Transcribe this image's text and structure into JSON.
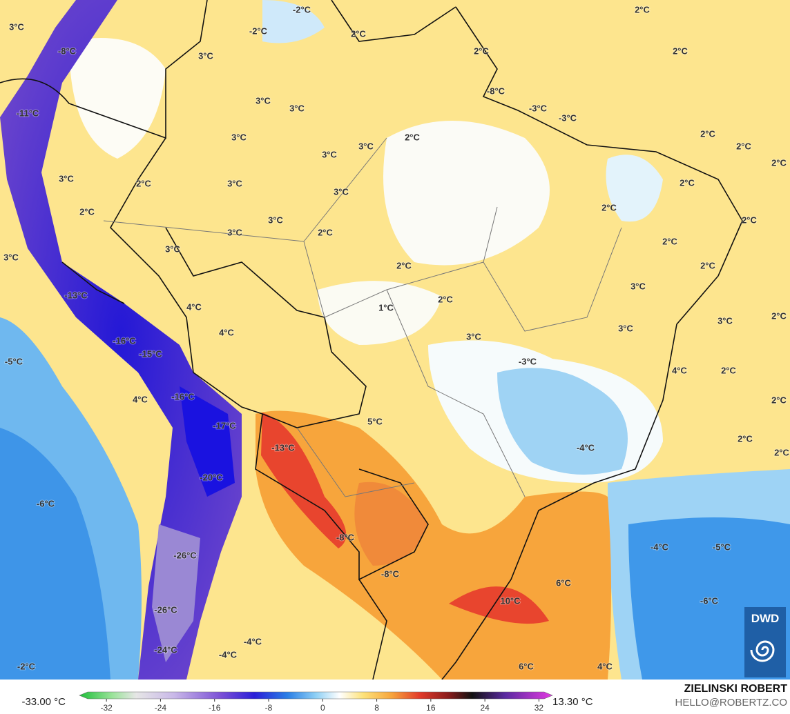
{
  "map": {
    "temperature_labels": [
      "-2°C",
      "3°C",
      "-8°C",
      "-2°C",
      "2°C",
      "3°C",
      "2°C",
      "2°C",
      "2°C",
      "3°C",
      "3°C",
      "-8°C",
      "-3°C",
      "-3°C",
      "-11°C",
      "3°C",
      "3°C",
      "3°C",
      "2°C",
      "2°C",
      "2°C",
      "2°C",
      "3°C",
      "2°C",
      "3°C",
      "3°C",
      "2°C",
      "2°C",
      "2°C",
      "2°C",
      "3°C",
      "3°C",
      "2°C",
      "3°C",
      "2°C",
      "3°C",
      "2°C",
      "2°C",
      "3°C",
      "-13°C",
      "2°C",
      "1°C",
      "4°C",
      "3°C",
      "3°C",
      "2°C",
      "4°C",
      "3°C",
      "-16°C",
      "-15°C",
      "-5°C",
      "-3°C",
      "4°C",
      "2°C",
      "4°C",
      "-16°C",
      "2°C",
      "5°C",
      "-17°C",
      "2°C",
      "-13°C",
      "-4°C",
      "2°C",
      "-20°C",
      "-6°C",
      "-8°C",
      "-4°C",
      "-5°C",
      "-26°C",
      "-8°C",
      "6°C",
      "10°C",
      "-6°C",
      "-26°C",
      "-4°C",
      "-24°C",
      "-4°C",
      "-2°C",
      "6°C",
      "4°C"
    ],
    "logo": "DWD"
  },
  "colorbar": {
    "min_label": "-33.00 °C",
    "max_label": "13.30 °C",
    "range": [
      -36,
      34
    ],
    "ticks": [
      -32,
      -24,
      -16,
      -8,
      0,
      8,
      16,
      24,
      32
    ]
  },
  "credit": {
    "author": "ZIELINSKI ROBERT",
    "contact": "HELLO@ROBERTZ.CO"
  }
}
